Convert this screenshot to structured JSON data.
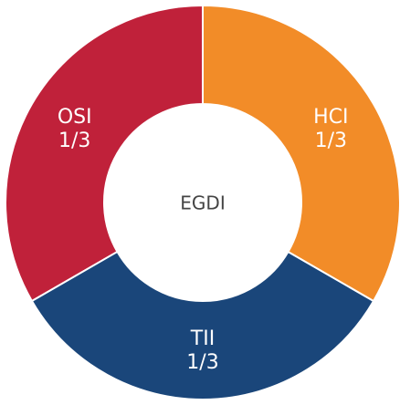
{
  "chart_data": {
    "type": "pie",
    "donut": true,
    "center_label": "EGDI",
    "categories": [
      "HCI",
      "TII",
      "OSI"
    ],
    "values": [
      0.3333333,
      0.3333333,
      0.3333333
    ],
    "value_labels": [
      "1/3",
      "1/3",
      "1/3"
    ],
    "colors": [
      "#f28c28",
      "#1a467a",
      "#c0213a"
    ]
  }
}
